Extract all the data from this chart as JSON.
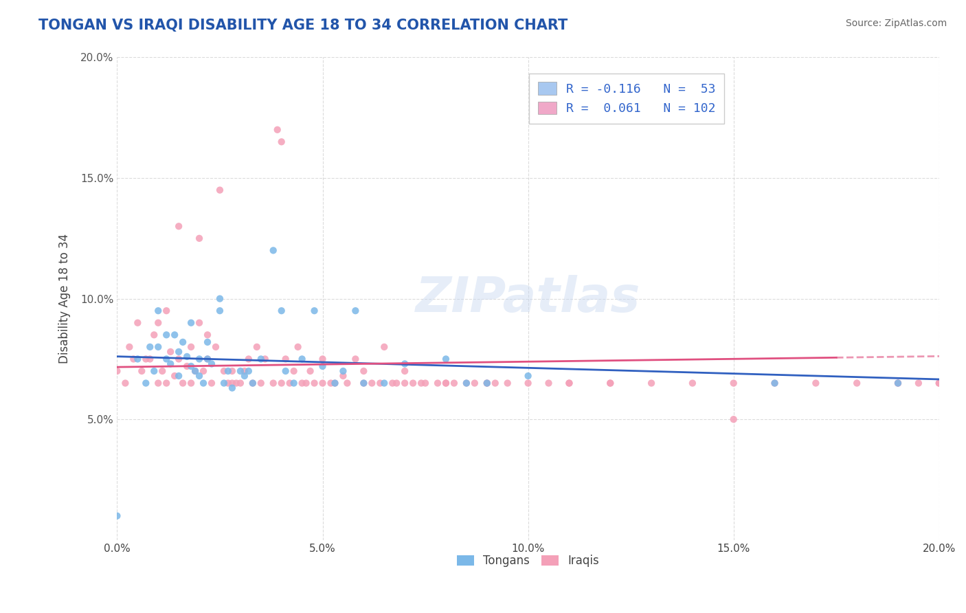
{
  "title": "TONGAN VS IRAQI DISABILITY AGE 18 TO 34 CORRELATION CHART",
  "source": "Source: ZipAtlas.com",
  "ylabel": "Disability Age 18 to 34",
  "xlim": [
    0.0,
    0.2
  ],
  "ylim": [
    0.0,
    0.2
  ],
  "xtick_labels": [
    "0.0%",
    "5.0%",
    "10.0%",
    "15.0%",
    "20.0%"
  ],
  "xtick_vals": [
    0.0,
    0.05,
    0.1,
    0.15,
    0.2
  ],
  "ytick_labels": [
    "5.0%",
    "10.0%",
    "15.0%",
    "20.0%"
  ],
  "ytick_vals": [
    0.05,
    0.1,
    0.15,
    0.2
  ],
  "legend_entries": [
    {
      "color": "#a8c8f0",
      "label": "R = -0.116   N =  53"
    },
    {
      "color": "#f0a8c8",
      "label": "R =  0.061   N = 102"
    }
  ],
  "bottom_legend": [
    "Tongans",
    "Iraqis"
  ],
  "tongan_R": -0.116,
  "iraqi_R": 0.061,
  "tongan_scatter_color": "#7bb8e8",
  "iraqi_scatter_color": "#f4a0b8",
  "tongan_line_color": "#3060c0",
  "iraqi_line_color": "#e05080",
  "background_color": "#ffffff",
  "grid_color": "#cccccc",
  "title_color": "#2255aa",
  "source_color": "#666666",
  "tongan_x": [
    0.0,
    0.005,
    0.007,
    0.008,
    0.009,
    0.01,
    0.01,
    0.012,
    0.012,
    0.013,
    0.014,
    0.015,
    0.015,
    0.016,
    0.017,
    0.018,
    0.018,
    0.019,
    0.02,
    0.02,
    0.021,
    0.022,
    0.022,
    0.023,
    0.025,
    0.025,
    0.026,
    0.027,
    0.028,
    0.03,
    0.031,
    0.032,
    0.033,
    0.035,
    0.038,
    0.04,
    0.041,
    0.043,
    0.045,
    0.048,
    0.05,
    0.053,
    0.055,
    0.058,
    0.06,
    0.065,
    0.07,
    0.08,
    0.085,
    0.09,
    0.1,
    0.16,
    0.19
  ],
  "tongan_y": [
    0.01,
    0.075,
    0.065,
    0.08,
    0.07,
    0.095,
    0.08,
    0.085,
    0.075,
    0.073,
    0.085,
    0.078,
    0.068,
    0.082,
    0.076,
    0.09,
    0.072,
    0.07,
    0.068,
    0.075,
    0.065,
    0.075,
    0.082,
    0.073,
    0.095,
    0.1,
    0.065,
    0.07,
    0.063,
    0.07,
    0.068,
    0.07,
    0.065,
    0.075,
    0.12,
    0.095,
    0.07,
    0.065,
    0.075,
    0.095,
    0.072,
    0.065,
    0.07,
    0.095,
    0.065,
    0.065,
    0.073,
    0.075,
    0.065,
    0.065,
    0.068,
    0.065,
    0.065
  ],
  "iraqi_x": [
    0.0,
    0.002,
    0.003,
    0.004,
    0.005,
    0.006,
    0.007,
    0.008,
    0.009,
    0.01,
    0.01,
    0.011,
    0.012,
    0.012,
    0.013,
    0.014,
    0.015,
    0.015,
    0.016,
    0.017,
    0.018,
    0.018,
    0.019,
    0.02,
    0.02,
    0.021,
    0.022,
    0.022,
    0.023,
    0.024,
    0.025,
    0.026,
    0.027,
    0.028,
    0.028,
    0.029,
    0.03,
    0.031,
    0.032,
    0.033,
    0.034,
    0.035,
    0.036,
    0.038,
    0.039,
    0.04,
    0.041,
    0.042,
    0.043,
    0.044,
    0.045,
    0.046,
    0.047,
    0.048,
    0.05,
    0.052,
    0.053,
    0.055,
    0.056,
    0.058,
    0.06,
    0.062,
    0.064,
    0.065,
    0.067,
    0.068,
    0.07,
    0.072,
    0.074,
    0.075,
    0.078,
    0.08,
    0.082,
    0.085,
    0.087,
    0.09,
    0.092,
    0.095,
    0.1,
    0.105,
    0.11,
    0.12,
    0.13,
    0.14,
    0.15,
    0.16,
    0.17,
    0.18,
    0.19,
    0.19,
    0.195,
    0.2,
    0.2,
    0.15,
    0.12,
    0.08,
    0.06,
    0.05,
    0.04,
    0.07,
    0.09,
    0.11
  ],
  "iraqi_y": [
    0.07,
    0.065,
    0.08,
    0.075,
    0.09,
    0.07,
    0.075,
    0.075,
    0.085,
    0.065,
    0.09,
    0.07,
    0.065,
    0.095,
    0.078,
    0.068,
    0.075,
    0.13,
    0.065,
    0.072,
    0.08,
    0.065,
    0.07,
    0.125,
    0.09,
    0.07,
    0.085,
    0.075,
    0.065,
    0.08,
    0.145,
    0.07,
    0.065,
    0.07,
    0.065,
    0.065,
    0.065,
    0.07,
    0.075,
    0.065,
    0.08,
    0.065,
    0.075,
    0.065,
    0.17,
    0.165,
    0.075,
    0.065,
    0.07,
    0.08,
    0.065,
    0.065,
    0.07,
    0.065,
    0.065,
    0.065,
    0.065,
    0.068,
    0.065,
    0.075,
    0.065,
    0.065,
    0.065,
    0.08,
    0.065,
    0.065,
    0.065,
    0.065,
    0.065,
    0.065,
    0.065,
    0.065,
    0.065,
    0.065,
    0.065,
    0.065,
    0.065,
    0.065,
    0.065,
    0.065,
    0.065,
    0.065,
    0.065,
    0.065,
    0.065,
    0.065,
    0.065,
    0.065,
    0.065,
    0.065,
    0.065,
    0.065,
    0.065,
    0.05,
    0.065,
    0.065,
    0.07,
    0.075,
    0.065,
    0.07,
    0.065,
    0.065
  ]
}
